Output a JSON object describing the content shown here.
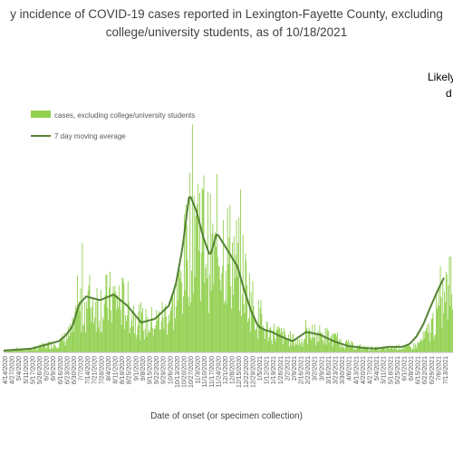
{
  "chart_data": {
    "type": "bar",
    "title_line1": "y incidence of COVID-19 cases reported in Lexington-Fayette County, excluding",
    "title_line2": "college/university students, as of 10/18/2021",
    "annotation_line1": "Likely",
    "annotation_line2": "d",
    "xlabel": "Date of onset (or specimen collection)",
    "legend": [
      {
        "label": "cases, excluding college/university students",
        "kind": "bar",
        "color": "#92d050"
      },
      {
        "label": "7 day moving average",
        "kind": "line",
        "color": "#548235"
      }
    ],
    "legend_position": "top-left",
    "x_tick_labels": [
      "4/14/2020",
      "4/27/2020",
      "5/4/2020",
      "5/11/2020",
      "5/17/2020",
      "5/26/2020",
      "6/2/2020",
      "6/9/2020",
      "6/16/2020",
      "6/23/2020",
      "6/30/2020",
      "7/7/2020",
      "7/14/2020",
      "7/21/2020",
      "7/28/2020",
      "8/4/2020",
      "8/11/2020",
      "8/18/2020",
      "8/25/2020",
      "9/1/2020",
      "9/8/2020",
      "9/15/2020",
      "9/22/2020",
      "9/29/2020",
      "10/6/2020",
      "10/13/2020",
      "10/20/2020",
      "10/27/2020",
      "11/3/2020",
      "11/10/2020",
      "11/17/2020",
      "11/24/2020",
      "12/1/2020",
      "12/8/2020",
      "12/15/2020",
      "12/22/2020",
      "12/29/2020",
      "1/5/2021",
      "1/12/2021",
      "1/19/2021",
      "1/26/2021",
      "2/2/2021",
      "2/9/2021",
      "2/16/2021",
      "2/23/2021",
      "3/2/2021",
      "3/9/2021",
      "3/16/2021",
      "3/23/2021",
      "3/30/2021",
      "4/6/2021",
      "4/13/2021",
      "4/20/2021",
      "4/27/2021",
      "5/4/2021",
      "5/11/2021",
      "5/18/2021",
      "5/25/2021",
      "6/1/2021",
      "6/8/2021",
      "6/15/2021",
      "6/22/2021",
      "6/29/2021",
      "7/6/2021",
      "7/13/2021"
    ],
    "ylim": [
      0,
      300
    ],
    "gridlines": false,
    "avg_keypoints": {
      "x": [
        0,
        4,
        6,
        8,
        9,
        10,
        11,
        12,
        14,
        16,
        18,
        20,
        22,
        24,
        25,
        26,
        27,
        28,
        29,
        30,
        31,
        32,
        33,
        34,
        35,
        36,
        37,
        38,
        39,
        40,
        41,
        42,
        44,
        46,
        48,
        50,
        52,
        54,
        56,
        58,
        59,
        60,
        61,
        62,
        63,
        64
      ],
      "y": [
        2,
        4,
        8,
        12,
        18,
        28,
        52,
        60,
        56,
        62,
        50,
        32,
        36,
        50,
        72,
        112,
        170,
        152,
        124,
        103,
        128,
        116,
        104,
        92,
        66,
        44,
        28,
        24,
        22,
        18,
        15,
        12,
        22,
        19,
        12,
        7,
        5,
        4,
        6,
        6,
        9,
        17,
        30,
        48,
        65,
        80
      ]
    }
  }
}
